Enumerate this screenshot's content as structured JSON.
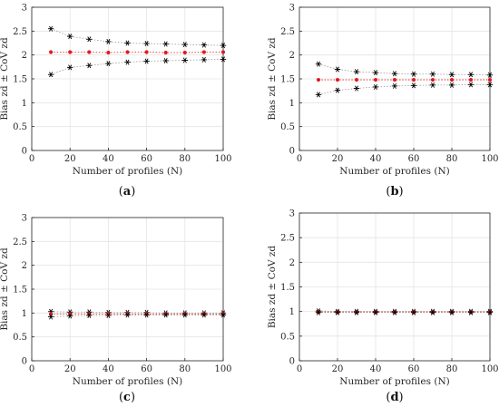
{
  "colors": {
    "bias_marker": "#e41a1c",
    "bias_line": "#e41a1c",
    "cov_marker": "#000000",
    "cov_line": "#9a9a9a",
    "grid": "#e4e4e4",
    "axis": "#262626"
  },
  "chart_data": [
    {
      "type": "line",
      "panel": "a",
      "caption": "a",
      "x": [
        10,
        20,
        30,
        40,
        50,
        60,
        70,
        80,
        90,
        100
      ],
      "xlim": [
        0,
        100
      ],
      "ylim": [
        0,
        3
      ],
      "xticks": [
        "0",
        "20",
        "40",
        "60",
        "80",
        "100"
      ],
      "yticks": [
        "0",
        "0.5",
        "1",
        "1.5",
        "2",
        "2.5",
        "3"
      ],
      "xlabel": "Number of profiles (N)",
      "ylabel": "Bias zd ± CoV zd",
      "grid": true,
      "series": [
        {
          "role": "upper",
          "marker": "asterisk",
          "values": [
            2.55,
            2.39,
            2.33,
            2.28,
            2.25,
            2.24,
            2.23,
            2.22,
            2.21,
            2.2
          ]
        },
        {
          "role": "bias",
          "marker": "dot",
          "values": [
            2.06,
            2.06,
            2.06,
            2.05,
            2.06,
            2.06,
            2.05,
            2.05,
            2.06,
            2.06
          ]
        },
        {
          "role": "lower",
          "marker": "asterisk",
          "values": [
            1.59,
            1.74,
            1.78,
            1.82,
            1.85,
            1.87,
            1.88,
            1.89,
            1.9,
            1.91
          ]
        }
      ]
    },
    {
      "type": "line",
      "panel": "b",
      "caption": "b",
      "x": [
        10,
        20,
        30,
        40,
        50,
        60,
        70,
        80,
        90,
        100
      ],
      "xlim": [
        0,
        100
      ],
      "ylim": [
        0,
        3
      ],
      "xticks": [
        "0",
        "20",
        "40",
        "60",
        "80",
        "100"
      ],
      "yticks": [
        "0",
        "0.5",
        "1",
        "1.5",
        "2",
        "2.5",
        "3"
      ],
      "xlabel": "Number of profiles (N)",
      "ylabel": "Bias zd ± CoV zd",
      "grid": true,
      "series": [
        {
          "role": "upper",
          "marker": "asterisk",
          "values": [
            1.81,
            1.7,
            1.65,
            1.63,
            1.61,
            1.6,
            1.6,
            1.59,
            1.59,
            1.58
          ]
        },
        {
          "role": "bias",
          "marker": "dot",
          "values": [
            1.48,
            1.48,
            1.48,
            1.48,
            1.48,
            1.48,
            1.48,
            1.48,
            1.48,
            1.48
          ]
        },
        {
          "role": "lower",
          "marker": "asterisk",
          "values": [
            1.17,
            1.26,
            1.3,
            1.33,
            1.35,
            1.36,
            1.37,
            1.37,
            1.38,
            1.38
          ]
        }
      ]
    },
    {
      "type": "line",
      "panel": "c",
      "caption": "c",
      "x": [
        10,
        20,
        30,
        40,
        50,
        60,
        70,
        80,
        90,
        100
      ],
      "xlim": [
        0,
        100
      ],
      "ylim": [
        0,
        3
      ],
      "xticks": [
        "0",
        "20",
        "40",
        "60",
        "80",
        "100"
      ],
      "yticks": [
        "0",
        "0.5",
        "1",
        "1.5",
        "2",
        "2.5",
        "3"
      ],
      "xlabel": "Number of profiles (N)",
      "ylabel": "Bias zd ± CoV zd",
      "grid": true,
      "series": [
        {
          "role": "upper",
          "marker": "asterisk",
          "values": [
            1.03,
            1.02,
            1.02,
            1.01,
            1.01,
            1.01,
            1.0,
            1.0,
            1.0,
            1.0
          ]
        },
        {
          "role": "bias",
          "marker": "dot",
          "values": [
            0.98,
            0.98,
            0.98,
            0.98,
            0.98,
            0.98,
            0.98,
            0.98,
            0.98,
            0.98
          ]
        },
        {
          "role": "lower",
          "marker": "asterisk",
          "values": [
            0.92,
            0.94,
            0.95,
            0.95,
            0.96,
            0.96,
            0.96,
            0.96,
            0.96,
            0.96
          ]
        }
      ]
    },
    {
      "type": "line",
      "panel": "d",
      "caption": "d",
      "x": [
        10,
        20,
        30,
        40,
        50,
        60,
        70,
        80,
        90,
        100
      ],
      "xlim": [
        0,
        100
      ],
      "ylim": [
        0,
        3
      ],
      "xticks": [
        "0",
        "20",
        "40",
        "60",
        "80",
        "100"
      ],
      "yticks": [
        "0",
        "0.5",
        "1",
        "1.5",
        "2",
        "2.5",
        "3"
      ],
      "xlabel": "Number of profiles (N)",
      "ylabel": "Bias zd ± CoV zd",
      "grid": true,
      "series": [
        {
          "role": "upper",
          "marker": "asterisk",
          "values": [
            1.01,
            1.0,
            1.0,
            1.0,
            1.0,
            1.0,
            1.0,
            1.0,
            1.0,
            1.0
          ]
        },
        {
          "role": "bias",
          "marker": "dot",
          "values": [
            0.99,
            0.99,
            0.99,
            0.99,
            0.99,
            0.99,
            0.99,
            0.99,
            0.99,
            0.99
          ]
        },
        {
          "role": "lower",
          "marker": "asterisk",
          "values": [
            0.98,
            0.98,
            0.98,
            0.98,
            0.98,
            0.98,
            0.98,
            0.98,
            0.98,
            0.98
          ]
        }
      ]
    }
  ]
}
